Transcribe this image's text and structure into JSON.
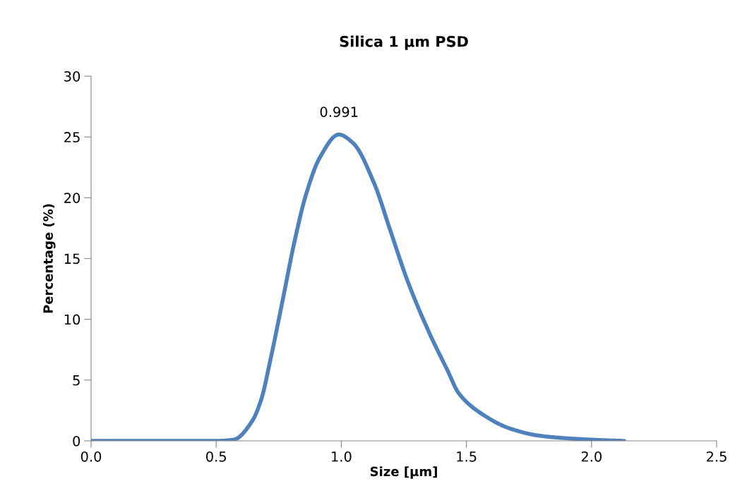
{
  "chart_data": {
    "type": "line",
    "title": "Silica 1 µm PSD",
    "xlabel": "Size [µm]",
    "ylabel": "Percentage (%)",
    "x": [
      0,
      0.3,
      0.5,
      0.57,
      0.643,
      0.68,
      0.717,
      0.765,
      0.813,
      0.858,
      0.914,
      0.99,
      1.047,
      1.131,
      1.196,
      1.264,
      1.349,
      1.422,
      1.47,
      1.563,
      1.676,
      1.8,
      2.0,
      2.13
    ],
    "series": [
      {
        "color": "#4f81bd",
        "values": [
          0,
          0,
          0,
          0.1,
          1.6,
          3.4,
          6.7,
          11.5,
          16.4,
          20.2,
          23.3,
          25.2,
          24.5,
          21.2,
          17.3,
          13.2,
          9.0,
          5.9,
          3.9,
          2.2,
          1.0,
          0.4,
          0.1,
          0
        ]
      }
    ],
    "annotations": [
      {
        "text": "0.991",
        "x": 0.991,
        "y": 25.2
      }
    ],
    "xlim": [
      0,
      2.5
    ],
    "xticks": [
      {
        "value": 0,
        "label": "0.0"
      },
      {
        "value": 0.5,
        "label": "0.5"
      },
      {
        "value": 1,
        "label": "1.0"
      },
      {
        "value": 1.5,
        "label": "1.5"
      },
      {
        "value": 2,
        "label": "2.0"
      },
      {
        "value": 2.5,
        "label": "2.5"
      }
    ],
    "ylim": [
      0,
      30
    ],
    "yticks": [
      0,
      5,
      10,
      15,
      20,
      25,
      30
    ],
    "grid": false,
    "legend": false,
    "marker": "none",
    "line_style": "solid"
  }
}
